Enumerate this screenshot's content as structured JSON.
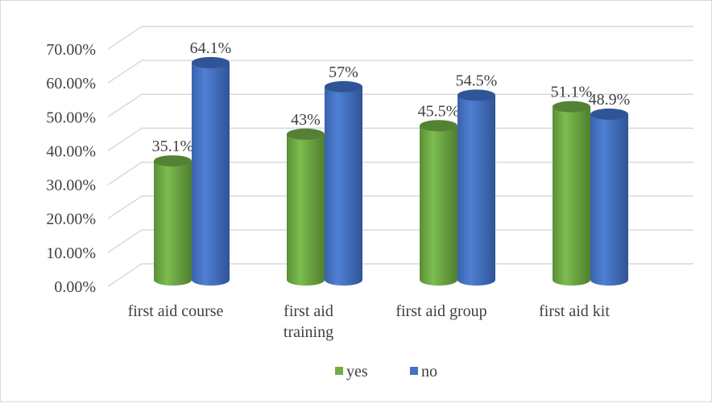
{
  "chart_data": {
    "type": "bar",
    "style": "3d-cylinder",
    "categories": [
      "first aid course",
      "first aid training",
      "first aid group",
      "first aid kit"
    ],
    "category_lines": [
      [
        "first aid course"
      ],
      [
        "first aid",
        "training"
      ],
      [
        "first aid group"
      ],
      [
        "first aid kit"
      ]
    ],
    "series": [
      {
        "name": "yes",
        "values": [
          35.1,
          43,
          45.5,
          51.1
        ],
        "labels": [
          "35.1%",
          "43%",
          "45.5%",
          "51.1%"
        ],
        "color": "#70ad47"
      },
      {
        "name": "no",
        "values": [
          64.1,
          57,
          54.5,
          48.9
        ],
        "labels": [
          "64.1%",
          "57%",
          "54.5%",
          "48.9%"
        ],
        "color": "#4472c4"
      }
    ],
    "yticks": [
      "0.00%",
      "10.00%",
      "20.00%",
      "30.00%",
      "40.00%",
      "50.00%",
      "60.00%",
      "70.00%"
    ],
    "ylim": [
      0,
      70
    ],
    "grid": true,
    "legend": "bottom"
  }
}
